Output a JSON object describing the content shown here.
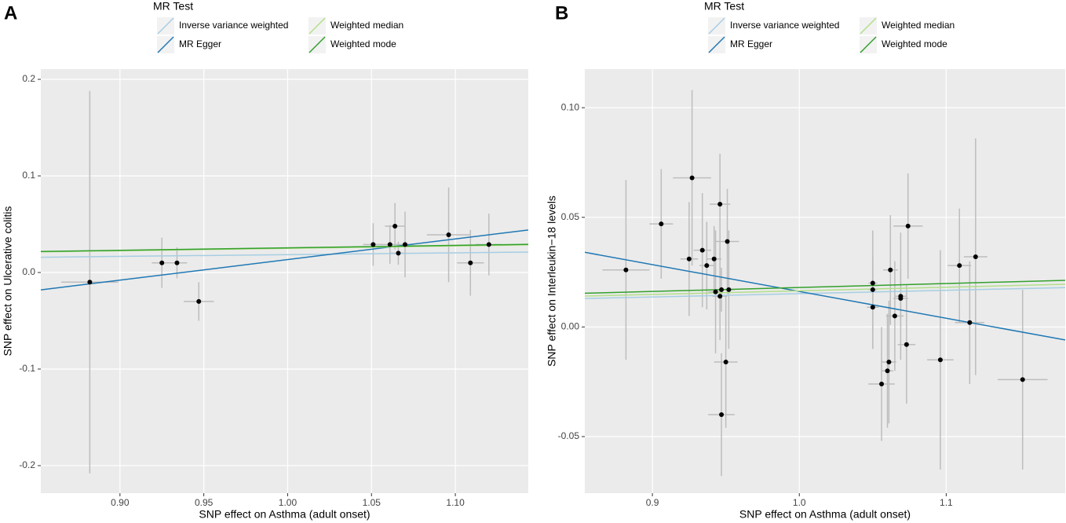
{
  "chart_data": [
    {
      "type": "scatter",
      "panel": "A",
      "legend_title": "MR Test",
      "xlabel": "SNP effect on Asthma (adult onset)",
      "ylabel": "SNP effect on Ulcerative colitis",
      "xlim": [
        0.8528,
        1.1435
      ],
      "ylim": [
        -0.2285,
        0.2106
      ],
      "xticks": [
        {
          "value": 0.9,
          "label": "0.90"
        },
        0.95,
        {
          "value": 1.0,
          "label": "1.00"
        },
        1.05,
        {
          "value": 1.1,
          "label": "1.10"
        }
      ],
      "yticks": [
        -0.2,
        -0.1,
        {
          "value": 0,
          "label": "0.0"
        },
        0.1,
        0.2
      ],
      "x": [
        0.882,
        0.925,
        0.934,
        0.947,
        1.051,
        1.061,
        1.064,
        1.066,
        1.07,
        1.096,
        1.109,
        1.12
      ],
      "values": [
        -0.01,
        0.01,
        0.01,
        -0.03,
        0.029,
        0.029,
        0.048,
        0.02,
        0.029,
        0.039,
        0.01,
        0.029
      ],
      "xerr": [
        0.017,
        0.006,
        0.006,
        0.009,
        0.006,
        0.006,
        0.006,
        0.005,
        0.005,
        0.013,
        0.008,
        0.008
      ],
      "yerr": [
        0.198,
        0.026,
        0.016,
        0.02,
        0.022,
        0.02,
        0.024,
        0.012,
        0.034,
        0.049,
        0.034,
        0.032
      ],
      "lines": [
        {
          "name": "Inverse variance weighted",
          "color": "#a6cee3",
          "slope": 0.0185,
          "intercept": 0
        },
        {
          "name": "MR Egger",
          "color": "#1f78b4",
          "slope": 0.2133,
          "intercept": -0.1999
        },
        {
          "name": "Weighted median",
          "color": "#b2df8a",
          "slope": 0.025,
          "intercept": 0
        },
        {
          "name": "Weighted mode",
          "color": "#33a02c",
          "slope": 0.0255,
          "intercept": 0
        }
      ]
    },
    {
      "type": "scatter",
      "panel": "B",
      "legend_title": "MR Test",
      "xlabel": "SNP effect on Asthma (adult onset)",
      "ylabel": "SNP effect on Interleukin−18 levels",
      "xlim": [
        0.854,
        1.181
      ],
      "ylim": [
        -0.0758,
        0.1176
      ],
      "xticks": [
        0.9,
        {
          "value": 1.0,
          "label": "1.0"
        },
        1.1
      ],
      "yticks": [
        -0.05,
        {
          "value": 0,
          "label": "0.00"
        },
        0.05,
        {
          "value": 0.1,
          "label": "0.10"
        }
      ],
      "x": [
        0.882,
        0.906,
        0.925,
        0.927,
        0.934,
        0.937,
        0.942,
        0.943,
        0.946,
        0.946,
        0.947,
        0.947,
        0.95,
        0.951,
        0.952,
        1.05,
        1.05,
        1.05,
        1.056,
        1.06,
        1.061,
        1.062,
        1.065,
        1.069,
        1.069,
        1.073,
        1.074,
        1.096,
        1.109,
        1.116,
        1.12,
        1.152
      ],
      "values": [
        0.026,
        0.047,
        0.031,
        0.068,
        0.035,
        0.028,
        0.031,
        0.016,
        0.014,
        0.056,
        0.017,
        -0.04,
        -0.016,
        0.039,
        0.017,
        0.02,
        0.017,
        0.009,
        -0.026,
        -0.02,
        -0.016,
        0.026,
        0.005,
        0.014,
        0.013,
        -0.008,
        0.046,
        -0.015,
        0.028,
        0.002,
        0.032,
        -0.024
      ],
      "xerr": [
        0.016,
        0.008,
        0.006,
        0.013,
        0.006,
        0.005,
        0.005,
        0.005,
        0.005,
        0.007,
        0.004,
        0.009,
        0.008,
        0.008,
        0.004,
        0.003,
        0.003,
        0.004,
        0.009,
        0.004,
        0.005,
        0.005,
        0.006,
        0.004,
        0.005,
        0.006,
        0.01,
        0.009,
        0.008,
        0.01,
        0.008,
        0.017
      ],
      "yerr": [
        0.041,
        0.025,
        0.026,
        0.04,
        0.026,
        0.02,
        0.015,
        0.028,
        0.02,
        0.023,
        0.01,
        0.028,
        0.03,
        0.024,
        0.027,
        0.012,
        0.027,
        0.019,
        0.026,
        0.026,
        0.028,
        0.025,
        0.025,
        0.029,
        0.013,
        0.027,
        0.024,
        0.05,
        0.026,
        0.028,
        0.054,
        0.041
      ],
      "lines": [
        {
          "name": "Inverse variance weighted",
          "color": "#a6cee3",
          "slope": 0.0152,
          "intercept": 0
        },
        {
          "name": "MR Egger",
          "color": "#1f78b4",
          "slope": -0.1223,
          "intercept": 0.1385
        },
        {
          "name": "Weighted median",
          "color": "#b2df8a",
          "slope": 0.0165,
          "intercept": 0
        },
        {
          "name": "Weighted mode",
          "color": "#33a02c",
          "slope": 0.018,
          "intercept": 0
        }
      ]
    }
  ]
}
